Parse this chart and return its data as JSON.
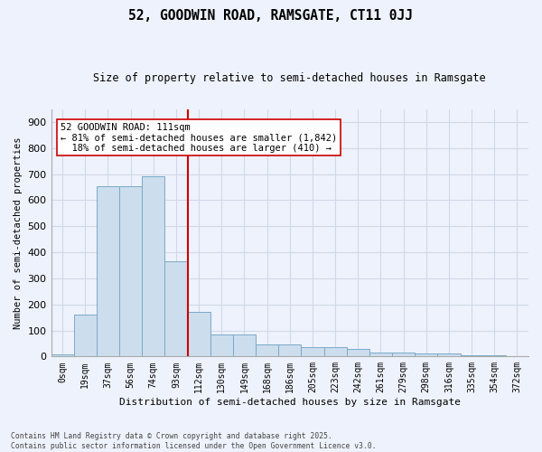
{
  "title1": "52, GOODWIN ROAD, RAMSGATE, CT11 0JJ",
  "title2": "Size of property relative to semi-detached houses in Ramsgate",
  "xlabel": "Distribution of semi-detached houses by size in Ramsgate",
  "ylabel": "Number of semi-detached properties",
  "bin_labels": [
    "0sqm",
    "19sqm",
    "37sqm",
    "56sqm",
    "74sqm",
    "93sqm",
    "112sqm",
    "130sqm",
    "149sqm",
    "168sqm",
    "186sqm",
    "205sqm",
    "223sqm",
    "242sqm",
    "261sqm",
    "279sqm",
    "298sqm",
    "316sqm",
    "335sqm",
    "354sqm",
    "372sqm"
  ],
  "bar_values": [
    8,
    160,
    655,
    655,
    690,
    365,
    170,
    85,
    85,
    48,
    48,
    35,
    35,
    30,
    15,
    14,
    13,
    10,
    5,
    3,
    0
  ],
  "bar_color": "#ccdded",
  "bar_edge_color": "#7aaac8",
  "grid_color": "#d0d8e8",
  "bg_color": "#eef2fc",
  "vline_x": 5.5,
  "vline_color": "#cc0000",
  "annotation_text": "52 GOODWIN ROAD: 111sqm\n← 81% of semi-detached houses are smaller (1,842)\n  18% of semi-detached houses are larger (410) →",
  "annotation_box_color": "#ffffff",
  "annotation_box_edge": "#cc0000",
  "footnote": "Contains HM Land Registry data © Crown copyright and database right 2025.\nContains public sector information licensed under the Open Government Licence v3.0.",
  "ylim": [
    0,
    950
  ],
  "yticks": [
    0,
    100,
    200,
    300,
    400,
    500,
    600,
    700,
    800,
    900
  ]
}
